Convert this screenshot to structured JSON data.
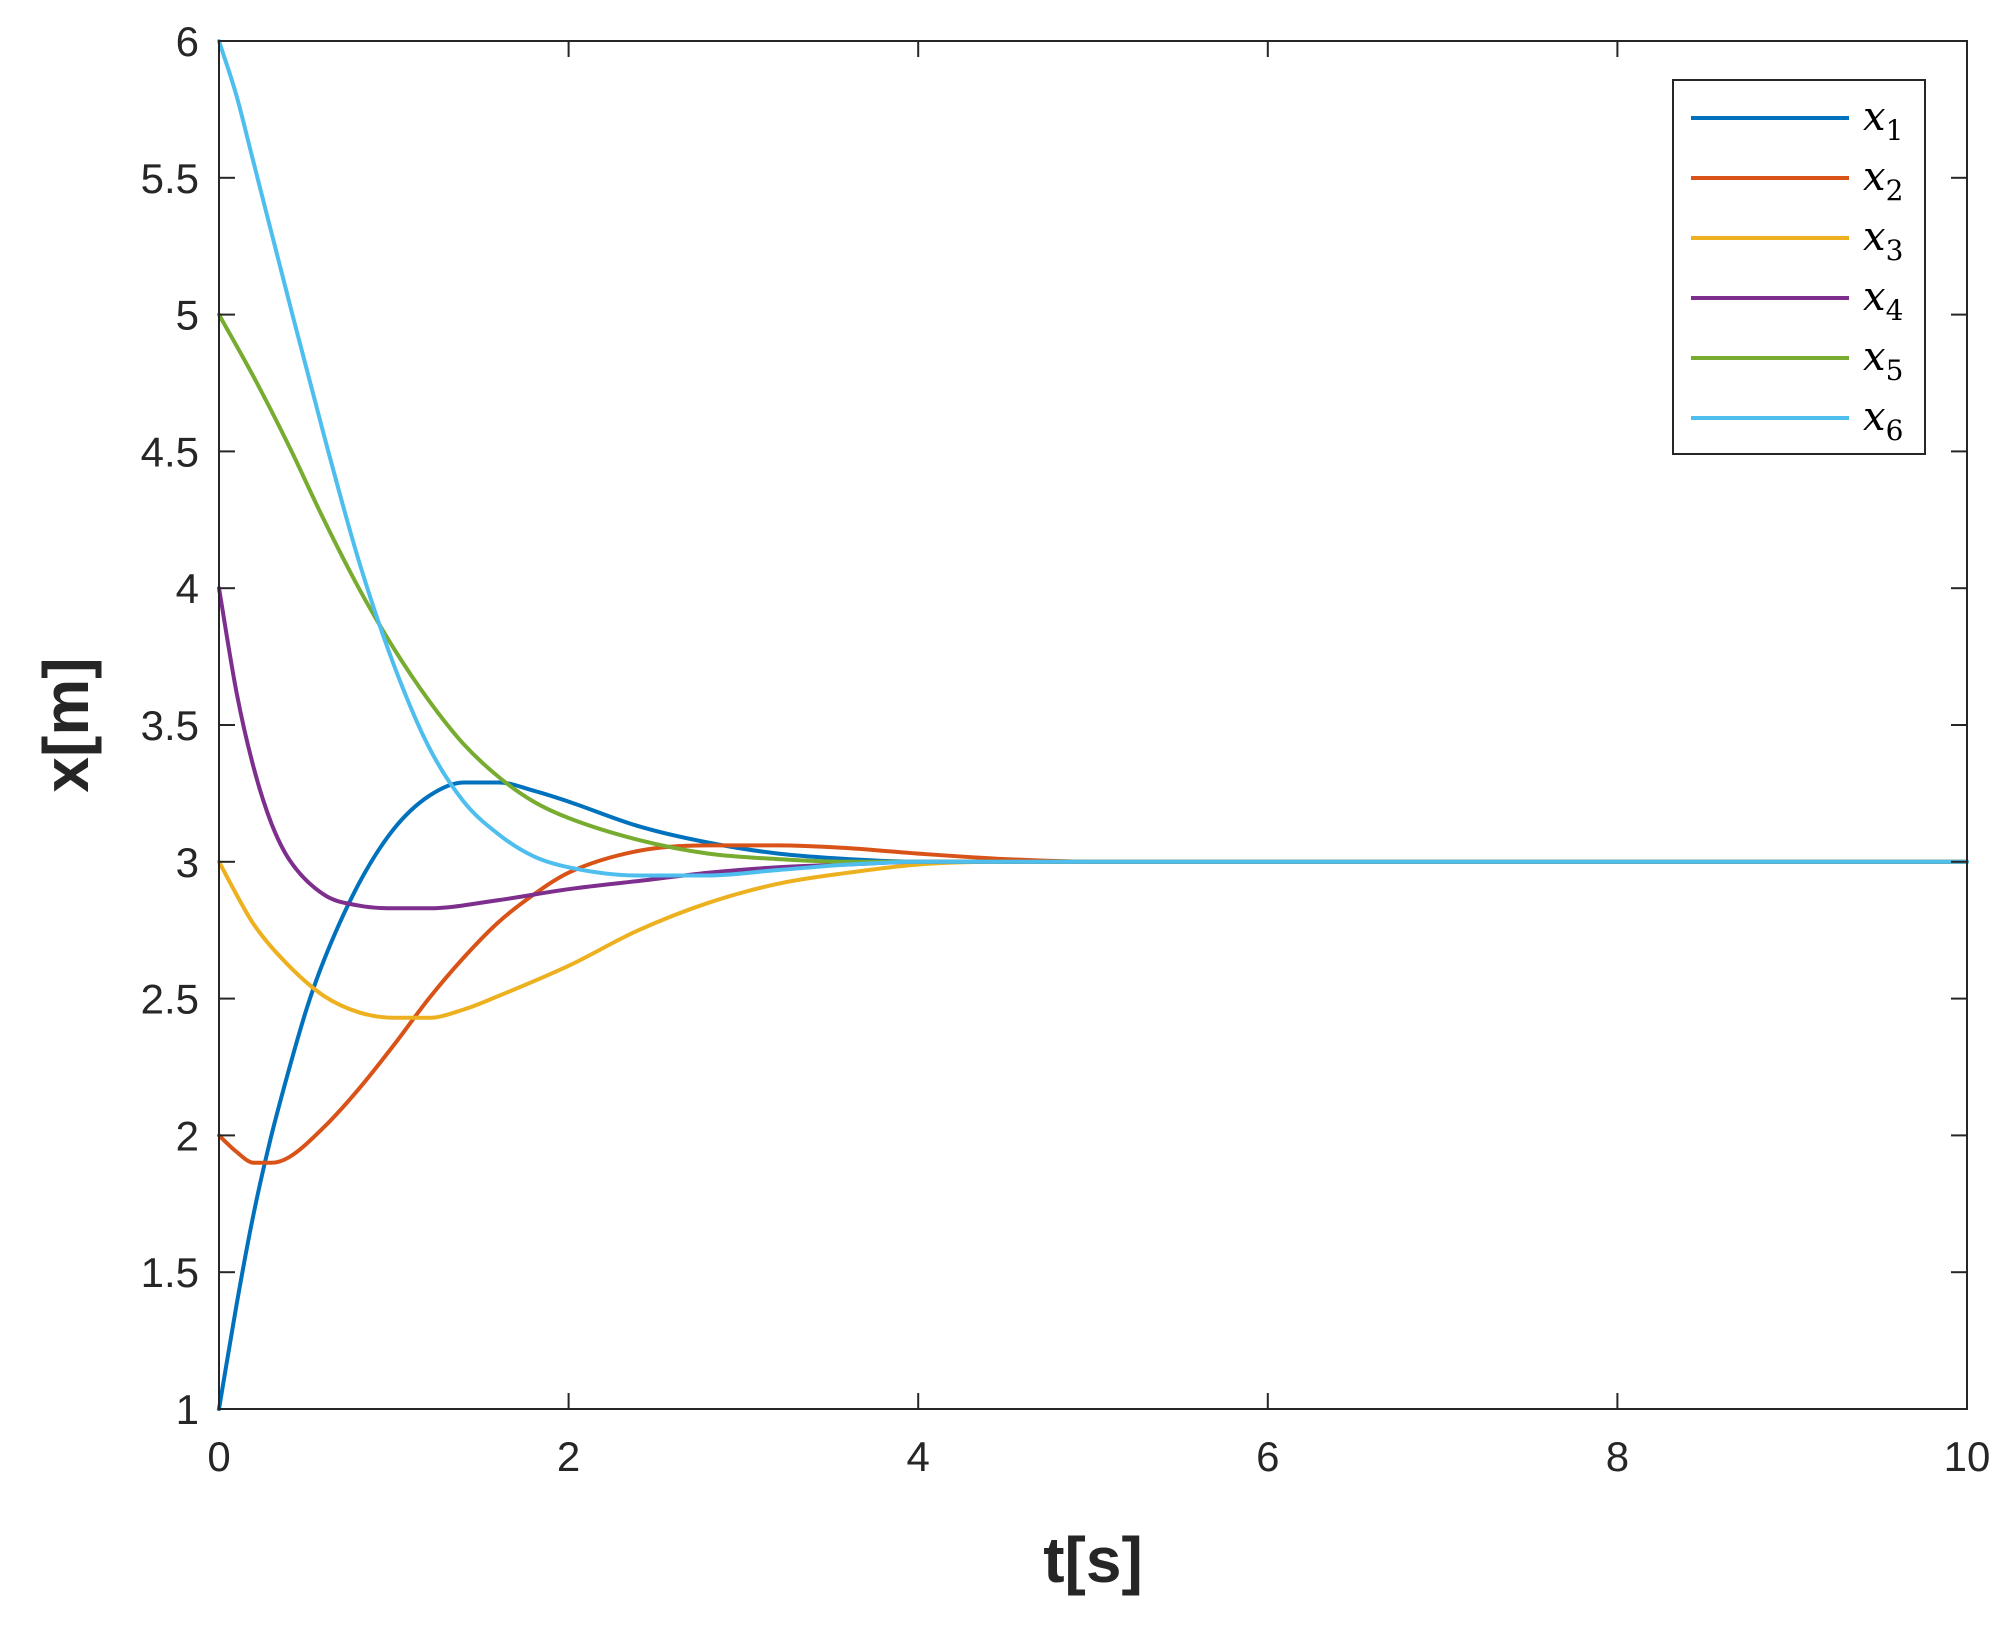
{
  "chart_data": {
    "type": "line",
    "title": "",
    "xlabel": "t[s]",
    "ylabel": "x[m]",
    "xlim": [
      0,
      10
    ],
    "ylim": [
      1,
      6
    ],
    "xticks": [
      "0",
      "2",
      "4",
      "6",
      "8",
      "10"
    ],
    "yticks": [
      "1",
      "1.5",
      "2",
      "2.5",
      "3",
      "3.5",
      "4",
      "4.5",
      "5",
      "5.5",
      "6"
    ],
    "grid": false,
    "legend_position": "top-right",
    "series": [
      {
        "name": "x",
        "subscript": "1",
        "color": "#0072BD",
        "points": [
          [
            0,
            1
          ],
          [
            0.1,
            1.38
          ],
          [
            0.2,
            1.72
          ],
          [
            0.3,
            2.0
          ],
          [
            0.4,
            2.24
          ],
          [
            0.5,
            2.46
          ],
          [
            0.6,
            2.64
          ],
          [
            0.8,
            2.92
          ],
          [
            1.0,
            3.12
          ],
          [
            1.2,
            3.24
          ],
          [
            1.4,
            3.29
          ],
          [
            1.6,
            3.29
          ],
          [
            1.8,
            3.26
          ],
          [
            2.0,
            3.22
          ],
          [
            2.4,
            3.13
          ],
          [
            2.8,
            3.07
          ],
          [
            3.2,
            3.03
          ],
          [
            3.6,
            3.01
          ],
          [
            4.0,
            3.0
          ],
          [
            5.0,
            3.0
          ],
          [
            10,
            3.0
          ]
        ]
      },
      {
        "name": "x",
        "subscript": "2",
        "color": "#D95319",
        "points": [
          [
            0,
            2.0
          ],
          [
            0.1,
            1.94
          ],
          [
            0.2,
            1.9
          ],
          [
            0.3,
            1.9
          ],
          [
            0.4,
            1.92
          ],
          [
            0.6,
            2.03
          ],
          [
            0.8,
            2.17
          ],
          [
            1.0,
            2.33
          ],
          [
            1.2,
            2.5
          ],
          [
            1.4,
            2.65
          ],
          [
            1.6,
            2.78
          ],
          [
            1.8,
            2.88
          ],
          [
            2.0,
            2.96
          ],
          [
            2.4,
            3.04
          ],
          [
            2.8,
            3.06
          ],
          [
            3.2,
            3.06
          ],
          [
            3.6,
            3.05
          ],
          [
            4.0,
            3.03
          ],
          [
            4.5,
            3.01
          ],
          [
            5.0,
            3.0
          ],
          [
            10,
            3.0
          ]
        ]
      },
      {
        "name": "x",
        "subscript": "3",
        "color": "#EDB120",
        "points": [
          [
            0,
            3.0
          ],
          [
            0.1,
            2.88
          ],
          [
            0.2,
            2.77
          ],
          [
            0.4,
            2.62
          ],
          [
            0.6,
            2.51
          ],
          [
            0.8,
            2.45
          ],
          [
            1.0,
            2.43
          ],
          [
            1.2,
            2.43
          ],
          [
            1.4,
            2.46
          ],
          [
            1.6,
            2.51
          ],
          [
            2.0,
            2.62
          ],
          [
            2.4,
            2.75
          ],
          [
            2.8,
            2.85
          ],
          [
            3.2,
            2.92
          ],
          [
            3.6,
            2.96
          ],
          [
            4.0,
            2.99
          ],
          [
            4.5,
            3.0
          ],
          [
            10,
            3.0
          ]
        ]
      },
      {
        "name": "x",
        "subscript": "4",
        "color": "#7E2F8E",
        "points": [
          [
            0,
            4.0
          ],
          [
            0.1,
            3.62
          ],
          [
            0.2,
            3.34
          ],
          [
            0.3,
            3.14
          ],
          [
            0.4,
            3.01
          ],
          [
            0.6,
            2.88
          ],
          [
            0.8,
            2.84
          ],
          [
            1.0,
            2.83
          ],
          [
            1.2,
            2.83
          ],
          [
            1.6,
            2.86
          ],
          [
            2.0,
            2.9
          ],
          [
            2.4,
            2.93
          ],
          [
            2.8,
            2.96
          ],
          [
            3.2,
            2.98
          ],
          [
            3.6,
            2.99
          ],
          [
            4.0,
            3.0
          ],
          [
            10,
            3.0
          ]
        ]
      },
      {
        "name": "x",
        "subscript": "5",
        "color": "#77AC30",
        "points": [
          [
            0,
            5.0
          ],
          [
            0.2,
            4.77
          ],
          [
            0.4,
            4.52
          ],
          [
            0.6,
            4.25
          ],
          [
            0.8,
            4.0
          ],
          [
            1.0,
            3.78
          ],
          [
            1.2,
            3.59
          ],
          [
            1.4,
            3.43
          ],
          [
            1.6,
            3.31
          ],
          [
            1.8,
            3.22
          ],
          [
            2.0,
            3.16
          ],
          [
            2.4,
            3.08
          ],
          [
            2.8,
            3.03
          ],
          [
            3.2,
            3.01
          ],
          [
            3.6,
            3.0
          ],
          [
            4.0,
            3.0
          ],
          [
            10,
            3.0
          ]
        ]
      },
      {
        "name": "x",
        "subscript": "6",
        "color": "#4DBEEE",
        "points": [
          [
            0,
            6.0
          ],
          [
            0.1,
            5.8
          ],
          [
            0.2,
            5.55
          ],
          [
            0.4,
            5.05
          ],
          [
            0.6,
            4.56
          ],
          [
            0.8,
            4.1
          ],
          [
            1.0,
            3.72
          ],
          [
            1.2,
            3.42
          ],
          [
            1.4,
            3.22
          ],
          [
            1.6,
            3.1
          ],
          [
            1.8,
            3.02
          ],
          [
            2.0,
            2.98
          ],
          [
            2.4,
            2.95
          ],
          [
            2.8,
            2.95
          ],
          [
            3.2,
            2.97
          ],
          [
            3.6,
            2.99
          ],
          [
            4.0,
            3.0
          ],
          [
            10,
            3.0
          ]
        ]
      }
    ]
  }
}
